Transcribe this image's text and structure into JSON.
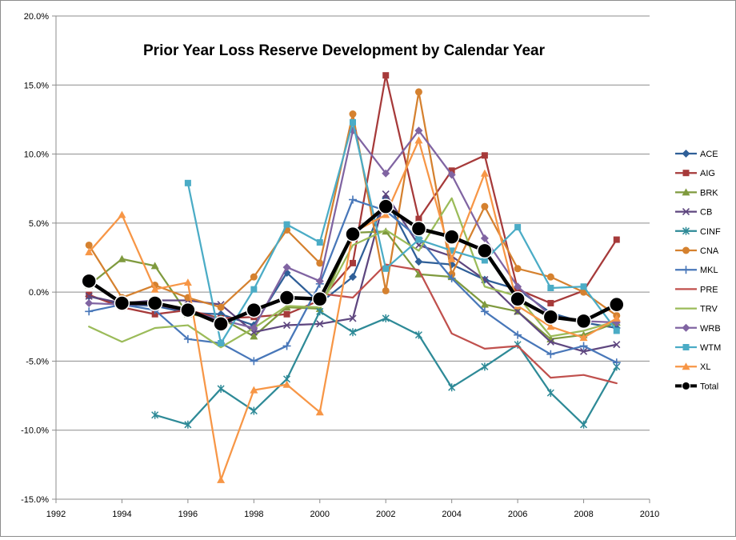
{
  "chart_data": {
    "type": "line",
    "title": "Prior Year Loss Reserve Development by Calendar Year",
    "xlim": [
      1992,
      2010
    ],
    "ylim": [
      -15,
      20
    ],
    "x_ticks": [
      1992,
      1994,
      1996,
      1998,
      2000,
      2002,
      2004,
      2006,
      2008,
      2010
    ],
    "y_ticks": [
      -15,
      -10,
      -5,
      0,
      5,
      10,
      15,
      20
    ],
    "y_tick_format": "percent_1dp",
    "grid": {
      "horizontal": true,
      "vertical": false
    },
    "legend_position": "right",
    "series": [
      {
        "name": "ACE",
        "color": "#2f5f98",
        "marker": "diamond",
        "points": [
          [
            1993,
            -0.3
          ],
          [
            1994,
            -0.9
          ],
          [
            1995,
            -1.0
          ],
          [
            1996,
            -1.5
          ],
          [
            1997,
            -1.6
          ],
          [
            1998,
            -2.4
          ],
          [
            1999,
            1.4
          ],
          [
            2000,
            -0.8
          ],
          [
            2001,
            1.1
          ],
          [
            2002,
            6.8
          ],
          [
            2003,
            2.2
          ],
          [
            2004,
            2.0
          ],
          [
            2005,
            0.9
          ],
          [
            2006,
            0.2
          ],
          [
            2007,
            -1.5
          ],
          [
            2008,
            -2.2
          ],
          [
            2009,
            -2.6
          ]
        ]
      },
      {
        "name": "AIG",
        "color": "#a63a3a",
        "marker": "square",
        "points": [
          [
            1993,
            -0.2
          ],
          [
            1994,
            -1.1
          ],
          [
            1995,
            -1.6
          ],
          [
            1996,
            -1.3
          ],
          [
            1997,
            -1.9
          ],
          [
            1998,
            -1.8
          ],
          [
            1999,
            -1.6
          ],
          [
            2000,
            -0.6
          ],
          [
            2001,
            2.1
          ],
          [
            2002,
            15.7
          ],
          [
            2003,
            5.3
          ],
          [
            2004,
            8.8
          ],
          [
            2005,
            9.9
          ],
          [
            2006,
            0.2
          ],
          [
            2007,
            -0.8
          ],
          [
            2008,
            0.1
          ],
          [
            2009,
            3.8
          ]
        ]
      },
      {
        "name": "BRK",
        "color": "#7f9a3e",
        "marker": "triangle",
        "points": [
          [
            1993,
            0.5
          ],
          [
            1994,
            2.4
          ],
          [
            1995,
            1.9
          ],
          [
            1996,
            -1.6
          ],
          [
            1997,
            -1.9
          ],
          [
            1998,
            -3.2
          ],
          [
            1999,
            -1.1
          ],
          [
            2000,
            -1.2
          ],
          [
            2001,
            4.3
          ],
          [
            2002,
            4.4
          ],
          [
            2003,
            1.3
          ],
          [
            2004,
            1.1
          ],
          [
            2005,
            -0.9
          ],
          [
            2006,
            -1.4
          ],
          [
            2007,
            -3.4
          ],
          [
            2008,
            -3.1
          ],
          [
            2009,
            -2.2
          ]
        ]
      },
      {
        "name": "CB",
        "color": "#5e467f",
        "marker": "x",
        "points": [
          [
            1993,
            -0.3
          ],
          [
            1994,
            -0.8
          ],
          [
            1995,
            -0.6
          ],
          [
            1996,
            -0.6
          ],
          [
            1997,
            -0.9
          ],
          [
            1998,
            -2.9
          ],
          [
            1999,
            -2.4
          ],
          [
            2000,
            -2.3
          ],
          [
            2001,
            -1.9
          ],
          [
            2002,
            7.1
          ],
          [
            2003,
            3.4
          ],
          [
            2004,
            2.6
          ],
          [
            2005,
            0.9
          ],
          [
            2006,
            -1.4
          ],
          [
            2007,
            -3.6
          ],
          [
            2008,
            -4.3
          ],
          [
            2009,
            -3.8
          ]
        ]
      },
      {
        "name": "CINF",
        "color": "#2e8a97",
        "marker": "star",
        "points": [
          [
            1995,
            -8.9
          ],
          [
            1996,
            -9.6
          ],
          [
            1997,
            -7.0
          ],
          [
            1998,
            -8.6
          ],
          [
            1999,
            -6.3
          ],
          [
            2000,
            -1.4
          ],
          [
            2001,
            -2.9
          ],
          [
            2002,
            -1.9
          ],
          [
            2003,
            -3.1
          ],
          [
            2004,
            -6.9
          ],
          [
            2005,
            -5.4
          ],
          [
            2006,
            -3.8
          ],
          [
            2007,
            -7.3
          ],
          [
            2008,
            -9.6
          ],
          [
            2009,
            -5.4
          ]
        ]
      },
      {
        "name": "CNA",
        "color": "#d5812f",
        "marker": "circle",
        "points": [
          [
            1993,
            3.4
          ],
          [
            1994,
            -0.4
          ],
          [
            1995,
            0.5
          ],
          [
            1996,
            -0.4
          ],
          [
            1997,
            -1.1
          ],
          [
            1998,
            1.1
          ],
          [
            1999,
            4.5
          ],
          [
            2000,
            2.1
          ],
          [
            2001,
            12.9
          ],
          [
            2002,
            0.1
          ],
          [
            2003,
            14.5
          ],
          [
            2004,
            1.3
          ],
          [
            2005,
            6.2
          ],
          [
            2006,
            1.7
          ],
          [
            2007,
            1.1
          ],
          [
            2008,
            0.0
          ],
          [
            2009,
            -1.7
          ]
        ]
      },
      {
        "name": "MKL",
        "color": "#4877b9",
        "marker": "plus",
        "points": [
          [
            1993,
            -1.4
          ],
          [
            1994,
            -0.9
          ],
          [
            1995,
            -1.3
          ],
          [
            1996,
            -3.4
          ],
          [
            1997,
            -3.7
          ],
          [
            1998,
            -5.0
          ],
          [
            1999,
            -3.9
          ],
          [
            2000,
            0.6
          ],
          [
            2001,
            6.7
          ],
          [
            2002,
            5.9
          ],
          [
            2003,
            3.9
          ],
          [
            2004,
            1.0
          ],
          [
            2005,
            -1.4
          ],
          [
            2006,
            -3.1
          ],
          [
            2007,
            -4.5
          ],
          [
            2008,
            -3.9
          ],
          [
            2009,
            -5.1
          ]
        ]
      },
      {
        "name": "PRE",
        "color": "#c0504d",
        "marker": "none",
        "points": [
          [
            2000,
            -0.1
          ],
          [
            2001,
            -0.4
          ],
          [
            2002,
            2.0
          ],
          [
            2003,
            1.6
          ],
          [
            2004,
            -3.0
          ],
          [
            2005,
            -4.1
          ],
          [
            2006,
            -3.9
          ],
          [
            2007,
            -6.2
          ],
          [
            2008,
            -6.0
          ],
          [
            2009,
            -6.6
          ]
        ]
      },
      {
        "name": "TRV",
        "color": "#9bbb59",
        "marker": "none",
        "points": [
          [
            1993,
            -2.5
          ],
          [
            1994,
            -3.6
          ],
          [
            1995,
            -2.6
          ],
          [
            1996,
            -2.4
          ],
          [
            1997,
            -4.0
          ],
          [
            1998,
            -2.6
          ],
          [
            1999,
            -1.0
          ],
          [
            2000,
            -1.1
          ],
          [
            2001,
            3.4
          ],
          [
            2002,
            4.5
          ],
          [
            2003,
            3.0
          ],
          [
            2004,
            6.8
          ],
          [
            2005,
            0.4
          ],
          [
            2006,
            -0.3
          ],
          [
            2007,
            -3.2
          ],
          [
            2008,
            -2.8
          ],
          [
            2009,
            -2.1
          ]
        ]
      },
      {
        "name": "WRB",
        "color": "#8064a2",
        "marker": "diamond",
        "points": [
          [
            1993,
            -0.8
          ],
          [
            1994,
            -0.9
          ],
          [
            1995,
            -0.9
          ],
          [
            1996,
            -1.4
          ],
          [
            1997,
            -2.0
          ],
          [
            1998,
            -2.6
          ],
          [
            1999,
            1.8
          ],
          [
            2000,
            0.8
          ],
          [
            2001,
            11.7
          ],
          [
            2002,
            8.6
          ],
          [
            2003,
            11.7
          ],
          [
            2004,
            8.5
          ],
          [
            2005,
            3.9
          ],
          [
            2006,
            0.4
          ],
          [
            2007,
            -1.7
          ],
          [
            2008,
            -2.1
          ],
          [
            2009,
            -2.2
          ]
        ]
      },
      {
        "name": "WTM",
        "color": "#4bacc6",
        "marker": "square",
        "points": [
          [
            1996,
            7.9
          ],
          [
            1997,
            -3.7
          ],
          [
            1998,
            0.2
          ],
          [
            1999,
            4.9
          ],
          [
            2000,
            3.6
          ],
          [
            2001,
            12.3
          ],
          [
            2002,
            1.7
          ],
          [
            2003,
            3.8
          ],
          [
            2004,
            3.0
          ],
          [
            2005,
            2.3
          ],
          [
            2006,
            4.7
          ],
          [
            2007,
            0.3
          ],
          [
            2008,
            0.4
          ],
          [
            2009,
            -2.8
          ]
        ]
      },
      {
        "name": "XL",
        "color": "#f79646",
        "marker": "triangle",
        "points": [
          [
            1993,
            2.9
          ],
          [
            1994,
            5.6
          ],
          [
            1995,
            0.2
          ],
          [
            1996,
            0.7
          ],
          [
            1997,
            -13.6
          ],
          [
            1998,
            -7.1
          ],
          [
            1999,
            -6.7
          ],
          [
            2000,
            -8.7
          ],
          [
            2001,
            4.3
          ],
          [
            2002,
            5.6
          ],
          [
            2003,
            11.0
          ],
          [
            2004,
            2.4
          ],
          [
            2005,
            8.6
          ],
          [
            2006,
            -1.0
          ],
          [
            2007,
            -2.5
          ],
          [
            2008,
            -3.3
          ],
          [
            2009,
            -1.9
          ]
        ]
      },
      {
        "name": "Total",
        "color": "#000000",
        "marker": "big-circle",
        "points": [
          [
            1993,
            0.8
          ],
          [
            1994,
            -0.8
          ],
          [
            1995,
            -0.8
          ],
          [
            1996,
            -1.3
          ],
          [
            1997,
            -2.3
          ],
          [
            1998,
            -1.3
          ],
          [
            1999,
            -0.4
          ],
          [
            2000,
            -0.5
          ],
          [
            2001,
            4.2
          ],
          [
            2002,
            6.2
          ],
          [
            2003,
            4.6
          ],
          [
            2004,
            4.0
          ],
          [
            2005,
            3.0
          ],
          [
            2006,
            -0.5
          ],
          [
            2007,
            -1.8
          ],
          [
            2008,
            -2.1
          ],
          [
            2009,
            -0.9
          ]
        ]
      }
    ]
  }
}
